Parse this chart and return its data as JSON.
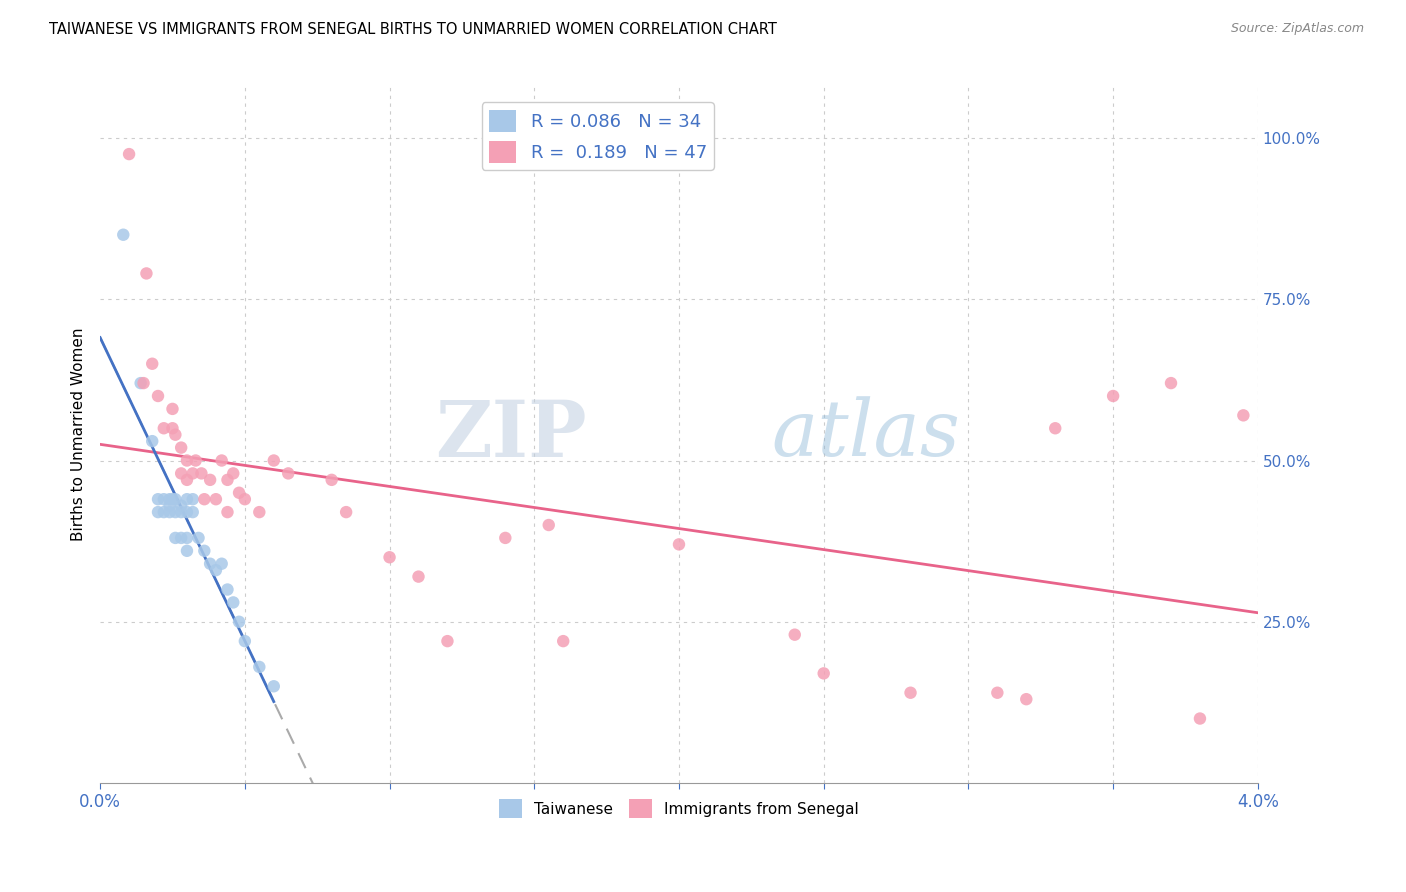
{
  "title": "TAIWANESE VS IMMIGRANTS FROM SENEGAL BIRTHS TO UNMARRIED WOMEN CORRELATION CHART",
  "source": "Source: ZipAtlas.com",
  "ylabel": "Births to Unmarried Women",
  "xlim": [
    0.0,
    0.04
  ],
  "ylim": [
    0.0,
    1.08
  ],
  "legend_r_taiwan": "0.086",
  "legend_n_taiwan": "34",
  "legend_r_senegal": "0.189",
  "legend_n_senegal": "47",
  "taiwan_color": "#a8c8e8",
  "senegal_color": "#f4a0b5",
  "taiwan_line_color": "#4472c4",
  "senegal_line_color": "#e8638a",
  "dashed_line_color": "#aaaaaa",
  "watermark_zip": "ZIP",
  "watermark_atlas": "atlas",
  "background_color": "#ffffff",
  "taiwan_scatter_x": [
    0.0008,
    0.0014,
    0.0018,
    0.002,
    0.002,
    0.0022,
    0.0022,
    0.0024,
    0.0024,
    0.0024,
    0.0025,
    0.0026,
    0.0026,
    0.0026,
    0.0028,
    0.0028,
    0.0028,
    0.003,
    0.003,
    0.003,
    0.003,
    0.0032,
    0.0032,
    0.0034,
    0.0036,
    0.0038,
    0.004,
    0.0042,
    0.0044,
    0.0046,
    0.0048,
    0.005,
    0.0055,
    0.006
  ],
  "taiwan_scatter_y": [
    0.85,
    0.62,
    0.53,
    0.44,
    0.42,
    0.44,
    0.42,
    0.44,
    0.43,
    0.42,
    0.44,
    0.44,
    0.42,
    0.38,
    0.43,
    0.42,
    0.38,
    0.44,
    0.42,
    0.38,
    0.36,
    0.44,
    0.42,
    0.38,
    0.36,
    0.34,
    0.33,
    0.34,
    0.3,
    0.28,
    0.25,
    0.22,
    0.18,
    0.15
  ],
  "senegal_scatter_x": [
    0.001,
    0.0015,
    0.0016,
    0.0018,
    0.002,
    0.0022,
    0.0025,
    0.0025,
    0.0026,
    0.0028,
    0.0028,
    0.003,
    0.003,
    0.0032,
    0.0033,
    0.0035,
    0.0036,
    0.0038,
    0.004,
    0.0042,
    0.0044,
    0.0044,
    0.0046,
    0.0048,
    0.005,
    0.0055,
    0.006,
    0.0065,
    0.008,
    0.0085,
    0.01,
    0.011,
    0.012,
    0.014,
    0.0155,
    0.016,
    0.02,
    0.024,
    0.025,
    0.028,
    0.031,
    0.032,
    0.033,
    0.035,
    0.037,
    0.038,
    0.0395
  ],
  "senegal_scatter_y": [
    0.975,
    0.62,
    0.79,
    0.65,
    0.6,
    0.55,
    0.58,
    0.55,
    0.54,
    0.52,
    0.48,
    0.5,
    0.47,
    0.48,
    0.5,
    0.48,
    0.44,
    0.47,
    0.44,
    0.5,
    0.47,
    0.42,
    0.48,
    0.45,
    0.44,
    0.42,
    0.5,
    0.48,
    0.47,
    0.42,
    0.35,
    0.32,
    0.22,
    0.38,
    0.4,
    0.22,
    0.37,
    0.23,
    0.17,
    0.14,
    0.14,
    0.13,
    0.55,
    0.6,
    0.62,
    0.1,
    0.57
  ]
}
